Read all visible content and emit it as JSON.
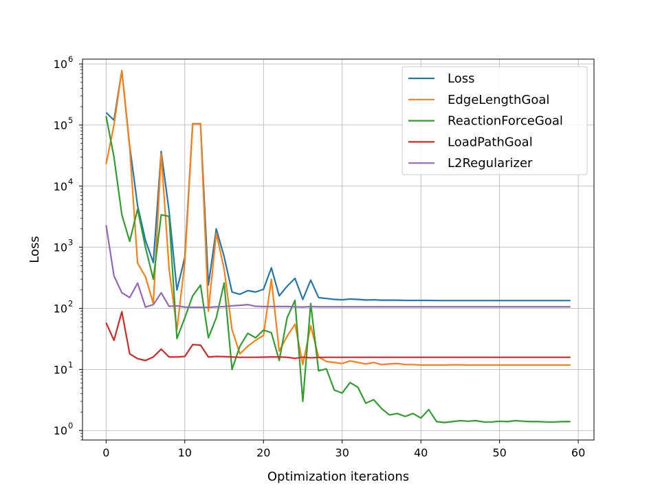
{
  "chart_data": {
    "type": "line",
    "title": "",
    "xlabel": "Optimization iterations",
    "ylabel": "Loss",
    "xlim": [
      -3,
      62
    ],
    "ylim": [
      0.7,
      1200000
    ],
    "yscale": "log",
    "grid": true,
    "legend_position": "top-right",
    "xticks": [
      0,
      10,
      20,
      30,
      40,
      50,
      60
    ],
    "yticks": [
      1,
      10,
      100,
      1000,
      10000,
      100000,
      1000000
    ],
    "ytick_labels": [
      {
        "base": "10",
        "exp": "0"
      },
      {
        "base": "10",
        "exp": "1"
      },
      {
        "base": "10",
        "exp": "2"
      },
      {
        "base": "10",
        "exp": "3"
      },
      {
        "base": "10",
        "exp": "4"
      },
      {
        "base": "10",
        "exp": "5"
      },
      {
        "base": "10",
        "exp": "6"
      }
    ],
    "series": [
      {
        "name": "Loss",
        "color": "#1f77b4",
        "values": [
          160000,
          120000,
          780000,
          45000,
          4800,
          1300,
          560,
          37000,
          3900,
          200,
          680,
          105000,
          105000,
          240,
          2000,
          700,
          185,
          170,
          195,
          185,
          205,
          460,
          160,
          230,
          310,
          140,
          290,
          150,
          145,
          140,
          138,
          142,
          140,
          137,
          138,
          136,
          136,
          136,
          135,
          135,
          135,
          135,
          134,
          134,
          134,
          134,
          134,
          134,
          134,
          134,
          134,
          134,
          134,
          134,
          134,
          134,
          134,
          134,
          134,
          134
        ]
      },
      {
        "name": "EdgeLengthGoal",
        "color": "#ff7f0e",
        "values": [
          23000,
          100000,
          780000,
          42000,
          550,
          330,
          120,
          34000,
          450,
          45,
          560,
          105000,
          105000,
          90,
          1700,
          440,
          45,
          18,
          24,
          30,
          36,
          300,
          20,
          35,
          55,
          12,
          52,
          16,
          13.5,
          13,
          12.5,
          13.8,
          13,
          12.3,
          13,
          12,
          12.3,
          12.5,
          12,
          12,
          11.8,
          11.8,
          11.8,
          11.8,
          11.9,
          11.9,
          11.8,
          11.8,
          11.8,
          11.8,
          11.8,
          11.8,
          11.8,
          11.8,
          11.8,
          11.8,
          11.8,
          11.8,
          11.8,
          11.8
        ]
      },
      {
        "name": "ReactionForceGoal",
        "color": "#2ca02c",
        "values": [
          140000,
          30000,
          3400,
          1250,
          4200,
          1000,
          300,
          3400,
          3200,
          32,
          70,
          160,
          240,
          33,
          70,
          260,
          10,
          24,
          39,
          33,
          44,
          40,
          14,
          70,
          135,
          3,
          120,
          9.5,
          10.2,
          4.6,
          4.1,
          6.1,
          5.1,
          2.8,
          3.2,
          2.3,
          1.8,
          1.9,
          1.7,
          1.9,
          1.6,
          2.2,
          1.4,
          1.35,
          1.4,
          1.45,
          1.42,
          1.45,
          1.38,
          1.38,
          1.42,
          1.4,
          1.45,
          1.42,
          1.4,
          1.4,
          1.38,
          1.38,
          1.4,
          1.4
        ]
      },
      {
        "name": "LoadPathGoal",
        "color": "#d62728",
        "values": [
          58,
          30,
          88,
          18,
          15,
          14,
          16,
          21.5,
          16,
          16,
          16.3,
          25.5,
          25,
          16,
          16.3,
          16.2,
          16,
          15.8,
          15.8,
          15.8,
          15.9,
          16,
          16,
          15.8,
          15.2,
          15.9,
          15.5,
          15.7,
          15.8,
          15.8,
          15.8,
          15.8,
          15.8,
          15.8,
          15.8,
          15.8,
          15.8,
          15.8,
          15.8,
          15.8,
          15.8,
          15.8,
          15.8,
          15.8,
          15.8,
          15.8,
          15.8,
          15.8,
          15.8,
          15.8,
          15.8,
          15.8,
          15.8,
          15.8,
          15.8,
          15.8,
          15.8,
          15.8,
          15.8,
          15.8
        ]
      },
      {
        "name": "L2Regularizer",
        "color": "#9467bd",
        "values": [
          2300,
          340,
          180,
          150,
          260,
          105,
          115,
          180,
          108,
          110,
          105,
          104,
          104,
          104,
          106,
          107,
          110,
          112,
          115,
          108,
          107,
          107,
          107,
          107,
          106,
          105,
          107,
          106,
          106,
          106,
          106,
          106,
          106,
          106,
          106,
          106,
          106,
          106,
          106,
          106,
          106,
          106,
          106,
          106,
          106,
          106,
          106,
          106,
          106,
          106,
          106,
          106,
          106,
          106,
          106,
          106,
          106,
          106,
          106,
          106
        ]
      }
    ]
  }
}
